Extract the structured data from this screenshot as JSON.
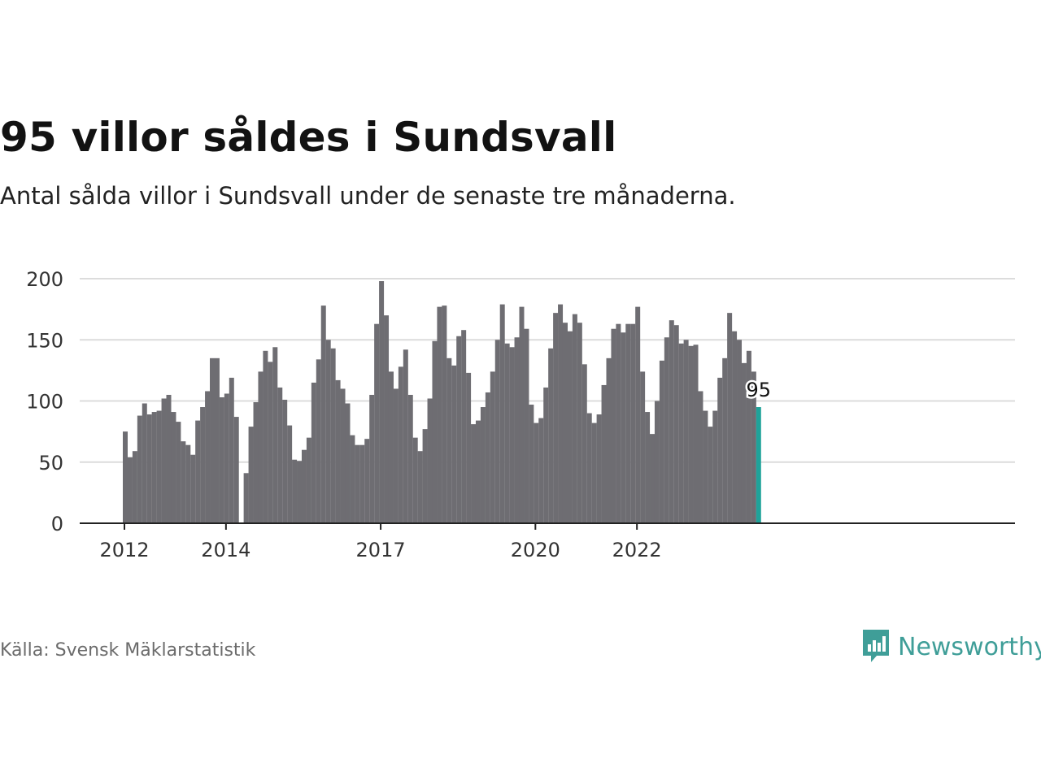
{
  "title": "95 villor såldes i Sundsvall",
  "subtitle": "Antal sålda villor i Sundsvall under de senaste tre månaderna.",
  "source": "Källa: Svensk Mäklarstatistik",
  "brand": "Newsworthy",
  "colors": {
    "bar": "#6e6d72",
    "highlight": "#1fa39a",
    "grid": "#dcdcdc",
    "axis": "#222222",
    "brand": "#3f9e98"
  },
  "chart_data": {
    "type": "bar",
    "title": "95 villor såldes i Sundsvall",
    "xlabel": "",
    "ylabel": "",
    "ylim": [
      0,
      200
    ],
    "yticks": [
      0,
      50,
      100,
      150,
      200
    ],
    "xticks": [
      {
        "label": "2012",
        "index": 0
      },
      {
        "label": "2014",
        "index": 21
      },
      {
        "label": "2017",
        "index": 53
      },
      {
        "label": "2020",
        "index": 85
      },
      {
        "label": "2022",
        "index": 106
      }
    ],
    "grid": true,
    "highlight_label": "95",
    "values": [
      75,
      54,
      59,
      88,
      98,
      89,
      91,
      92,
      102,
      105,
      91,
      83,
      67,
      64,
      56,
      84,
      95,
      108,
      135,
      135,
      103,
      106,
      119,
      87,
      null,
      41,
      79,
      99,
      124,
      141,
      132,
      144,
      111,
      101,
      80,
      52,
      51,
      60,
      70,
      115,
      134,
      178,
      150,
      143,
      117,
      110,
      98,
      72,
      64,
      64,
      69,
      105,
      163,
      198,
      170,
      124,
      110,
      128,
      142,
      105,
      70,
      59,
      77,
      102,
      149,
      177,
      178,
      135,
      129,
      153,
      158,
      123,
      81,
      84,
      95,
      107,
      124,
      150,
      179,
      147,
      144,
      152,
      177,
      159,
      97,
      82,
      86,
      111,
      143,
      172,
      179,
      164,
      157,
      171,
      164,
      130,
      90,
      82,
      89,
      113,
      135,
      159,
      163,
      156,
      163,
      163,
      177,
      124,
      91,
      73,
      100,
      133,
      152,
      166,
      162,
      147,
      150,
      145,
      146,
      108,
      92,
      79,
      92,
      119,
      135,
      172,
      157,
      150,
      131,
      141,
      124,
      95
    ]
  }
}
